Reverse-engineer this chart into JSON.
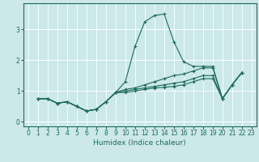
{
  "title": "",
  "xlabel": "Humidex (Indice chaleur)",
  "bg_color": "#cce8e8",
  "grid_color": "#ffffff",
  "line_color": "#1a6b5a",
  "xlim": [
    -0.5,
    23.5
  ],
  "ylim": [
    -0.15,
    3.85
  ],
  "yticks": [
    0,
    1,
    2,
    3
  ],
  "xticks": [
    0,
    1,
    2,
    3,
    4,
    5,
    6,
    7,
    8,
    9,
    10,
    11,
    12,
    13,
    14,
    15,
    16,
    17,
    18,
    19,
    20,
    21,
    22,
    23
  ],
  "series": [
    [
      0.75,
      0.75,
      0.6,
      0.65,
      0.5,
      0.35,
      0.4,
      0.65,
      0.95,
      1.3,
      2.45,
      3.25,
      3.45,
      3.5,
      2.6,
      1.95,
      1.8,
      1.8,
      1.8,
      0.75,
      1.2,
      1.6
    ],
    [
      0.75,
      0.75,
      0.6,
      0.65,
      0.5,
      0.35,
      0.4,
      0.65,
      0.95,
      1.05,
      1.1,
      1.2,
      1.3,
      1.4,
      1.5,
      1.55,
      1.65,
      1.75,
      1.75,
      0.75,
      1.2,
      1.6
    ],
    [
      0.75,
      0.75,
      0.6,
      0.65,
      0.5,
      0.35,
      0.4,
      0.65,
      0.95,
      1.0,
      1.05,
      1.1,
      1.15,
      1.2,
      1.25,
      1.3,
      1.4,
      1.5,
      1.5,
      0.75,
      1.2,
      1.6
    ],
    [
      0.75,
      0.75,
      0.6,
      0.65,
      0.5,
      0.35,
      0.4,
      0.65,
      0.95,
      0.95,
      1.0,
      1.05,
      1.1,
      1.12,
      1.15,
      1.2,
      1.3,
      1.4,
      1.4,
      0.75,
      1.2,
      1.6
    ]
  ],
  "x_start": 1,
  "xlabel_fontsize": 6.5,
  "tick_fontsize": 5.5,
  "linewidth": 0.8,
  "markersize": 3.0
}
